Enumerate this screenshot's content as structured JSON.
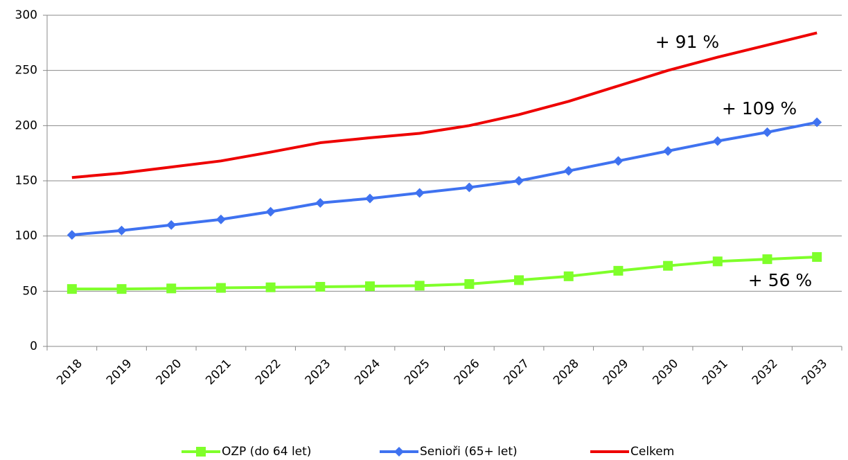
{
  "chart_data": {
    "type": "line",
    "categories": [
      "2018",
      "2019",
      "2020",
      "2021",
      "2022",
      "2023",
      "2024",
      "2025",
      "2026",
      "2027",
      "2028",
      "2029",
      "2030",
      "2031",
      "2032",
      "2033"
    ],
    "series": [
      {
        "name": "OZP (do 64 let)",
        "color": "#7fff2a",
        "marker": "square",
        "values": [
          52,
          52,
          52.5,
          53,
          53.5,
          54,
          54.5,
          55,
          56.5,
          60,
          63.5,
          68.5,
          73,
          77,
          79,
          81
        ]
      },
      {
        "name": "Senioři (65+ let)",
        "color": "#3f72f0",
        "marker": "diamond",
        "values": [
          101,
          105,
          110,
          115,
          122,
          130,
          134,
          139,
          144,
          150,
          159,
          168,
          177,
          186,
          194,
          203
        ]
      },
      {
        "name": "Celkem",
        "color": "#ee0000",
        "marker": "none",
        "values": [
          153,
          157,
          162.5,
          168,
          176,
          184.5,
          189,
          193,
          200,
          210,
          222,
          236,
          250,
          262,
          273,
          284
        ]
      }
    ],
    "annotations": [
      "+ 91 %",
      "+ 109 %",
      "+ 56 %"
    ],
    "ylim": [
      0,
      300
    ],
    "yticks": [
      0,
      50,
      100,
      150,
      200,
      250,
      300
    ],
    "grid": true,
    "legend": "bottom"
  }
}
